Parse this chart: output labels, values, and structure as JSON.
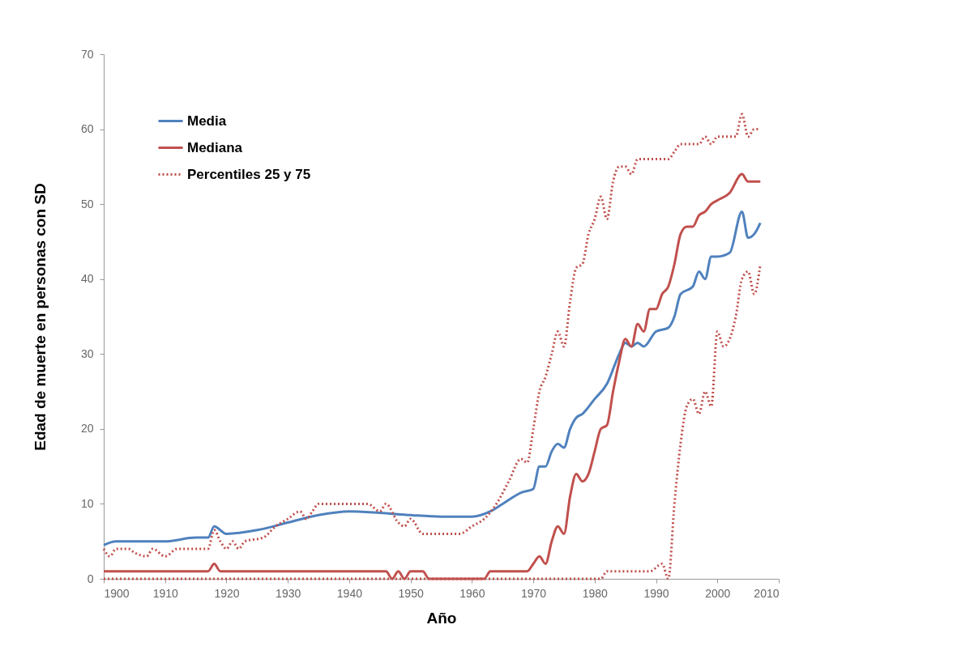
{
  "chart_data": {
    "type": "line",
    "xlabel": "Año",
    "ylabel": "Edad de muerte en personas con SD",
    "xlim": [
      1900,
      2010
    ],
    "ylim": [
      0,
      70
    ],
    "xticks": [
      1900,
      1910,
      1920,
      1930,
      1940,
      1950,
      1960,
      1970,
      1980,
      1990,
      2000,
      2010
    ],
    "yticks": [
      0,
      10,
      20,
      30,
      40,
      50,
      60,
      70
    ],
    "grid": false,
    "legend": "top left",
    "marker": "none",
    "series": [
      {
        "name": "Media",
        "color": "#4f81bd",
        "line_style": "solid",
        "x": [
          1900,
          1902,
          1905,
          1910,
          1915,
          1917,
          1918,
          1920,
          1925,
          1930,
          1935,
          1940,
          1945,
          1950,
          1955,
          1960,
          1963,
          1965,
          1968,
          1970,
          1971,
          1972,
          1973,
          1974,
          1975,
          1976,
          1977,
          1978,
          1980,
          1982,
          1984,
          1985,
          1986,
          1987,
          1988,
          1990,
          1992,
          1993,
          1994,
          1996,
          1997,
          1998,
          1999,
          2000,
          2002,
          2004,
          2005,
          2006,
          2007
        ],
        "values": [
          4.5,
          5,
          5,
          5,
          5.5,
          5.5,
          7,
          6,
          6.5,
          7.5,
          8.5,
          9,
          8.8,
          8.5,
          8.3,
          8.3,
          9,
          10,
          11.5,
          12,
          15,
          15,
          17,
          18,
          17.5,
          20,
          21.5,
          22,
          24,
          26,
          30,
          31.5,
          31,
          31.5,
          31,
          33,
          33.5,
          35,
          38,
          39,
          41,
          40,
          43,
          43,
          43.5,
          49,
          45.5,
          46,
          47.5
        ]
      },
      {
        "name": "Mediana",
        "color": "#c0504d",
        "line_style": "solid",
        "x": [
          1900,
          1917,
          1918,
          1919,
          1946,
          1947,
          1948,
          1949,
          1950,
          1952,
          1953,
          1962,
          1963,
          1969,
          1970,
          1971,
          1972,
          1973,
          1974,
          1975,
          1976,
          1977,
          1978,
          1979,
          1980,
          1981,
          1982,
          1983,
          1984,
          1985,
          1986,
          1987,
          1988,
          1989,
          1990,
          1991,
          1992,
          1993,
          1994,
          1995,
          1996,
          1997,
          1998,
          1999,
          2000,
          2002,
          2004,
          2005,
          2007
        ],
        "values": [
          1,
          1,
          2,
          1,
          1,
          0,
          1,
          0,
          1,
          1,
          0,
          0,
          1,
          1,
          2,
          3,
          2,
          5,
          7,
          6,
          11,
          14,
          13,
          14,
          17,
          20,
          20.5,
          25,
          29,
          32,
          31,
          34,
          33,
          36,
          36,
          38,
          39,
          42,
          46,
          47,
          47,
          48.5,
          49,
          50,
          50.5,
          51.5,
          54,
          53,
          53
        ]
      },
      {
        "name": "Percentiles 25 y 75",
        "color": "#c0504d",
        "line_style": "dotted",
        "x": [
          1900,
          1901,
          1902,
          1904,
          1905,
          1907,
          1908,
          1910,
          1912,
          1917,
          1918,
          1919,
          1920,
          1921,
          1922,
          1923,
          1926,
          1928,
          1930,
          1932,
          1933,
          1934,
          1935,
          1943,
          1945,
          1946,
          1948,
          1949,
          1950,
          1952,
          1958,
          1960,
          1962,
          1964,
          1966,
          1968,
          1969,
          1970,
          1971,
          1972,
          1973,
          1974,
          1975,
          1976,
          1977,
          1978,
          1979,
          1980,
          1981,
          1982,
          1983,
          1984,
          1985,
          1986,
          1987,
          1992,
          1993,
          1994,
          1997,
          1998,
          1999,
          2000,
          2003,
          2004,
          2005,
          2006,
          2007
        ],
        "values": [
          4,
          3,
          4,
          4,
          3.5,
          3,
          4,
          3,
          4,
          4,
          6.5,
          5,
          4,
          5,
          4,
          5,
          5.5,
          7,
          8,
          9,
          8,
          9,
          10,
          10,
          9,
          10,
          7.5,
          7,
          8,
          6,
          6,
          7,
          8,
          10,
          13,
          16,
          15.5,
          20,
          25,
          27,
          30,
          33,
          31,
          37,
          41.5,
          42,
          46,
          48,
          51,
          48,
          53,
          55,
          55,
          54,
          56,
          56,
          57,
          58,
          58,
          59,
          58,
          59,
          59,
          62,
          59,
          60,
          60
        ]
      },
      {
        "color": "#c0504d",
        "line_style": "dotted",
        "x": [
          1900,
          1981,
          1982,
          1989,
          1991,
          1992,
          1993,
          1994,
          1995,
          1996,
          1997,
          1998,
          1999,
          2000,
          2001,
          2002,
          2003,
          2004,
          2005,
          2006,
          2007
        ],
        "values": [
          0,
          0,
          1,
          1,
          2,
          0,
          10,
          18,
          23,
          24,
          22,
          25,
          23,
          33,
          31,
          32,
          35,
          40,
          41,
          38,
          42
        ]
      }
    ]
  }
}
